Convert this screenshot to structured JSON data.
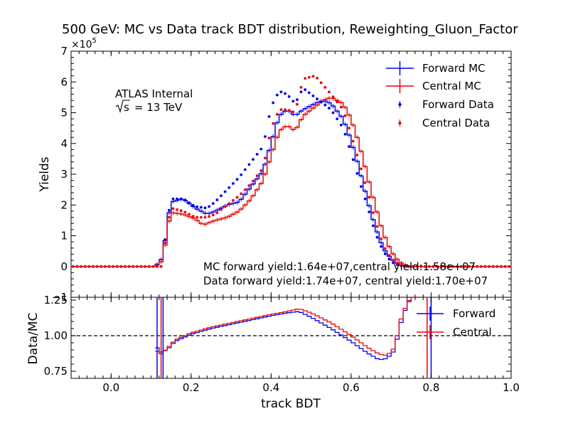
{
  "chart_data": {
    "type": "step",
    "title": "500 GeV: MC vs Data track BDT distribution, Reweighting_Gluon_Factor",
    "xlabel": "track BDT",
    "annotations": {
      "experiment": "ATLAS Internal",
      "energy_prefix": "s",
      "energy_value": "= 13 TeV",
      "mc_yields": "MC forward yield:1.64e+07,central yield:1.58e+07",
      "data_yields": "Data forward yield:1.74e+07, central yield:1.70e+07"
    },
    "x_ticks": [
      "0.0",
      "0.2",
      "0.4",
      "0.6",
      "0.8",
      "1.0"
    ],
    "colors": {
      "forward": "#0000ee",
      "central": "#ee0000"
    },
    "bin_edges_range": [
      -0.1,
      1.0
    ],
    "bin_width": 0.01,
    "upper": {
      "ylabel": "Yields",
      "scale_label": "×10",
      "scale_exp": "5",
      "ylim": [
        -1,
        7
      ],
      "y_ticks": [
        "−1",
        "0",
        "1",
        "2",
        "3",
        "4",
        "5",
        "6",
        "7"
      ],
      "legend": [
        "Forward MC",
        "Central MC",
        "Forward Data",
        "Central Data"
      ],
      "legend_position": "top-right",
      "forward_mc_pts": [
        [
          0.11,
          0
        ],
        [
          0.13,
          0.3
        ],
        [
          0.14,
          1.4
        ],
        [
          0.15,
          2.1
        ],
        [
          0.18,
          2.2
        ],
        [
          0.21,
          1.9
        ],
        [
          0.24,
          1.7
        ],
        [
          0.26,
          1.8
        ],
        [
          0.29,
          2.0
        ],
        [
          0.32,
          2.1
        ],
        [
          0.35,
          2.6
        ],
        [
          0.38,
          3.1
        ],
        [
          0.4,
          4.0
        ],
        [
          0.42,
          4.9
        ],
        [
          0.44,
          5.1
        ],
        [
          0.46,
          4.9
        ],
        [
          0.48,
          5.1
        ],
        [
          0.51,
          5.3
        ],
        [
          0.53,
          5.4
        ],
        [
          0.55,
          5.3
        ],
        [
          0.58,
          4.8
        ],
        [
          0.6,
          4.1
        ],
        [
          0.62,
          3.2
        ],
        [
          0.64,
          2.2
        ],
        [
          0.66,
          1.3
        ],
        [
          0.68,
          0.6
        ],
        [
          0.7,
          0.25
        ],
        [
          0.72,
          0.06
        ],
        [
          0.74,
          0.0
        ]
      ],
      "central_mc_pts": [
        [
          0.11,
          0
        ],
        [
          0.13,
          0.2
        ],
        [
          0.14,
          1.2
        ],
        [
          0.15,
          1.75
        ],
        [
          0.18,
          1.7
        ],
        [
          0.21,
          1.55
        ],
        [
          0.23,
          1.35
        ],
        [
          0.26,
          1.5
        ],
        [
          0.29,
          1.6
        ],
        [
          0.32,
          1.8
        ],
        [
          0.35,
          2.2
        ],
        [
          0.38,
          2.8
        ],
        [
          0.4,
          3.6
        ],
        [
          0.42,
          4.4
        ],
        [
          0.44,
          4.6
        ],
        [
          0.46,
          4.4
        ],
        [
          0.48,
          4.9
        ],
        [
          0.51,
          5.2
        ],
        [
          0.53,
          5.4
        ],
        [
          0.55,
          5.5
        ],
        [
          0.58,
          5.3
        ],
        [
          0.6,
          4.8
        ],
        [
          0.62,
          4.0
        ],
        [
          0.64,
          3.0
        ],
        [
          0.66,
          2.0
        ],
        [
          0.68,
          1.1
        ],
        [
          0.7,
          0.5
        ],
        [
          0.72,
          0.15
        ],
        [
          0.74,
          0.02
        ],
        [
          0.76,
          0.0
        ]
      ],
      "forward_data_pts": [
        [
          0.13,
          0.3
        ],
        [
          0.14,
          1.45
        ],
        [
          0.15,
          2.2
        ],
        [
          0.18,
          2.2
        ],
        [
          0.21,
          1.95
        ],
        [
          0.24,
          1.9
        ],
        [
          0.26,
          2.1
        ],
        [
          0.29,
          2.5
        ],
        [
          0.32,
          2.9
        ],
        [
          0.35,
          3.4
        ],
        [
          0.38,
          3.9
        ],
        [
          0.4,
          5.2
        ],
        [
          0.42,
          5.7
        ],
        [
          0.44,
          5.6
        ],
        [
          0.46,
          5.3
        ],
        [
          0.48,
          5.8
        ],
        [
          0.51,
          5.5
        ],
        [
          0.53,
          5.3
        ],
        [
          0.55,
          5.1
        ],
        [
          0.58,
          4.5
        ],
        [
          0.6,
          3.7
        ],
        [
          0.62,
          2.8
        ],
        [
          0.64,
          2.0
        ],
        [
          0.66,
          1.1
        ],
        [
          0.68,
          0.5
        ],
        [
          0.7,
          0.15
        ],
        [
          0.72,
          0.03
        ],
        [
          0.74,
          0.0
        ]
      ],
      "central_data_pts": [
        [
          0.13,
          0.25
        ],
        [
          0.14,
          1.3
        ],
        [
          0.15,
          1.9
        ],
        [
          0.18,
          1.8
        ],
        [
          0.21,
          1.6
        ],
        [
          0.24,
          1.6
        ],
        [
          0.26,
          1.7
        ],
        [
          0.29,
          2.0
        ],
        [
          0.32,
          2.3
        ],
        [
          0.35,
          2.7
        ],
        [
          0.38,
          3.2
        ],
        [
          0.4,
          4.5
        ],
        [
          0.42,
          5.1
        ],
        [
          0.44,
          5.1
        ],
        [
          0.46,
          5.0
        ],
        [
          0.48,
          6.1
        ],
        [
          0.51,
          6.2
        ],
        [
          0.53,
          5.9
        ],
        [
          0.55,
          5.6
        ],
        [
          0.58,
          5.1
        ],
        [
          0.6,
          4.3
        ],
        [
          0.62,
          3.4
        ],
        [
          0.64,
          2.5
        ],
        [
          0.66,
          1.5
        ],
        [
          0.68,
          0.7
        ],
        [
          0.7,
          0.25
        ],
        [
          0.72,
          0.05
        ],
        [
          0.74,
          0.0
        ]
      ]
    },
    "lower": {
      "ylabel": "Data/MC",
      "ylim": [
        0.7,
        1.27
      ],
      "y_ticks": [
        "0.75",
        "1.00",
        "1.25"
      ],
      "y_tick_values": [
        0.75,
        1.0,
        1.25
      ],
      "reference_line": 1.0,
      "legend": [
        "Forward",
        "Central"
      ],
      "legend_position": "top-right",
      "forward_ratio_pts": [
        [
          0.11,
          0.95
        ],
        [
          0.12,
          0.88
        ],
        [
          0.14,
          0.9
        ],
        [
          0.16,
          0.96
        ],
        [
          0.2,
          1.01
        ],
        [
          0.25,
          1.05
        ],
        [
          0.3,
          1.08
        ],
        [
          0.35,
          1.11
        ],
        [
          0.4,
          1.14
        ],
        [
          0.44,
          1.16
        ],
        [
          0.47,
          1.17
        ],
        [
          0.5,
          1.13
        ],
        [
          0.55,
          1.05
        ],
        [
          0.6,
          0.96
        ],
        [
          0.64,
          0.88
        ],
        [
          0.67,
          0.83
        ],
        [
          0.69,
          0.84
        ],
        [
          0.71,
          0.9
        ],
        [
          0.72,
          1.05
        ],
        [
          0.74,
          1.22
        ],
        [
          0.76,
          1.3
        ]
      ],
      "central_ratio_pts": [
        [
          0.11,
          0.92
        ],
        [
          0.12,
          0.86
        ],
        [
          0.14,
          0.91
        ],
        [
          0.16,
          0.97
        ],
        [
          0.2,
          1.02
        ],
        [
          0.25,
          1.06
        ],
        [
          0.3,
          1.09
        ],
        [
          0.35,
          1.12
        ],
        [
          0.4,
          1.15
        ],
        [
          0.44,
          1.17
        ],
        [
          0.47,
          1.19
        ],
        [
          0.5,
          1.16
        ],
        [
          0.55,
          1.09
        ],
        [
          0.6,
          1.0
        ],
        [
          0.64,
          0.92
        ],
        [
          0.67,
          0.87
        ],
        [
          0.69,
          0.86
        ],
        [
          0.71,
          0.92
        ],
        [
          0.72,
          1.08
        ],
        [
          0.74,
          1.23
        ],
        [
          0.76,
          1.3
        ]
      ],
      "error_bar_x": [
        0.115,
        0.125,
        0.13,
        0.79,
        0.8
      ]
    }
  }
}
